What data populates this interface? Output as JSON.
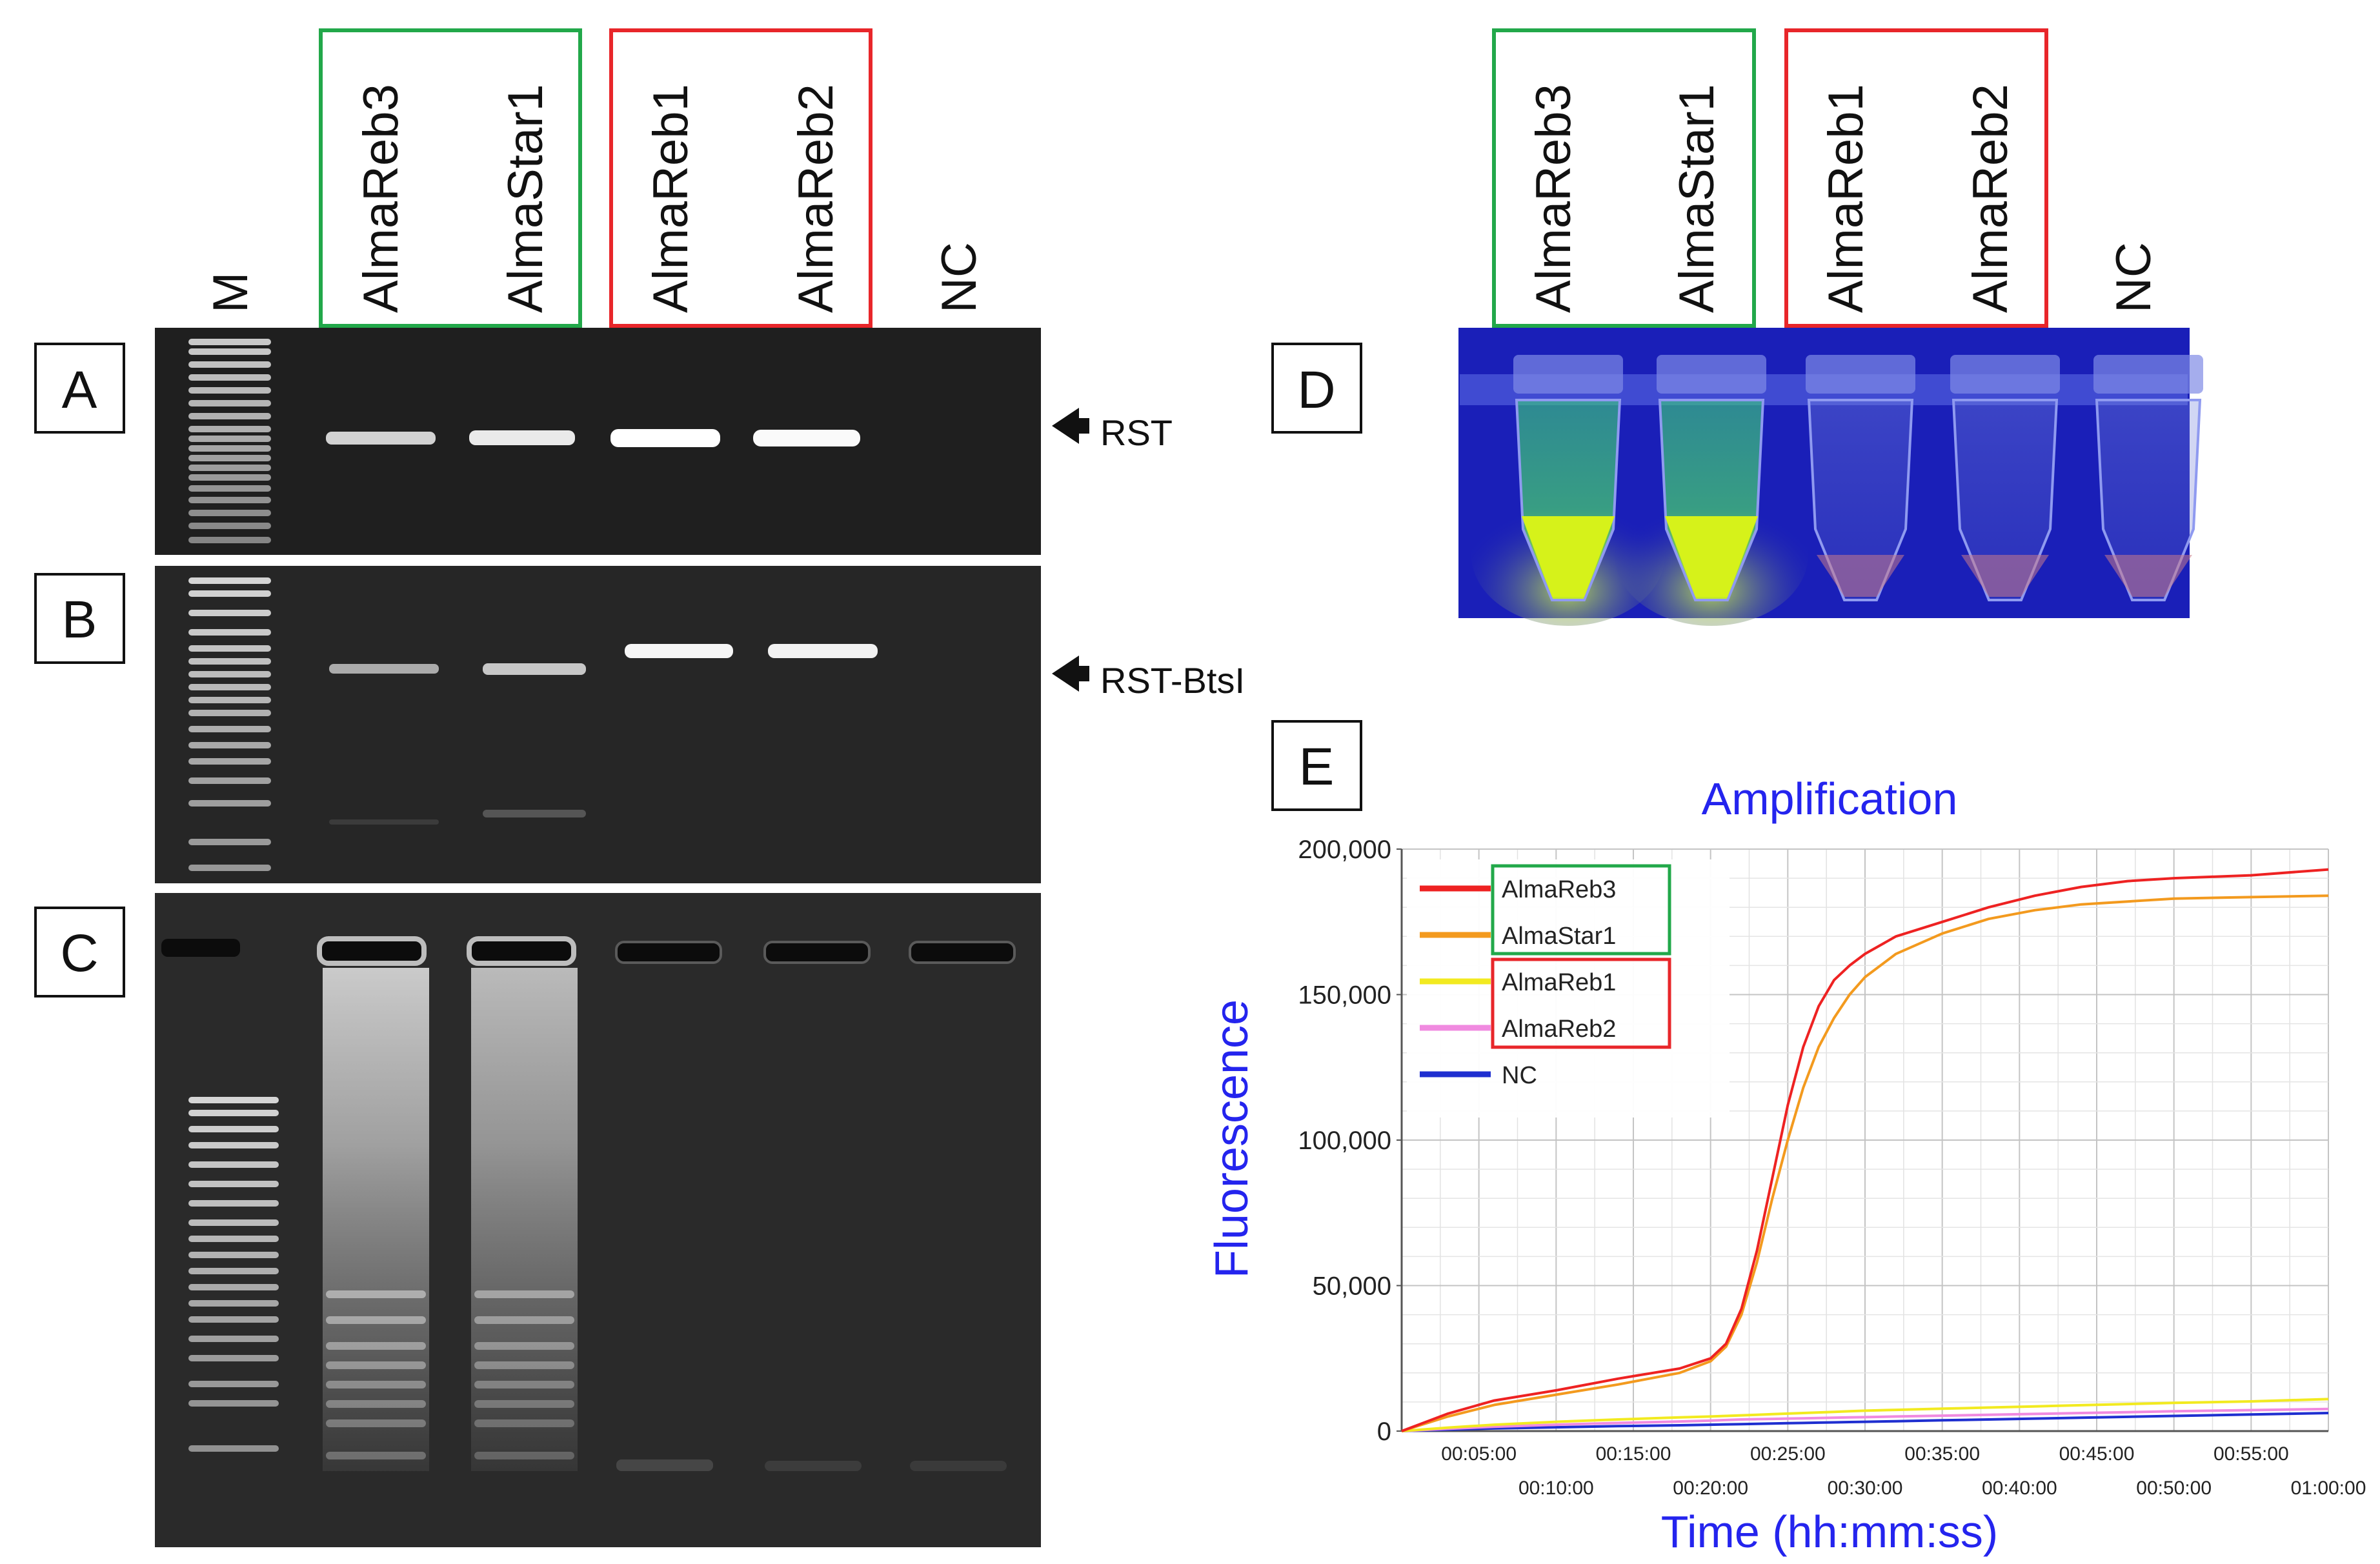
{
  "panel_letters": [
    "A",
    "B",
    "C",
    "D",
    "E"
  ],
  "gel": {
    "marker_label": "M",
    "lanes": [
      "AlmaReb3",
      "AlmaStar1",
      "AlmaReb1",
      "AlmaReb2",
      "NC"
    ],
    "band_a_label": "RST",
    "band_b_label": "RST-BtsI",
    "green_group": [
      "AlmaReb3",
      "AlmaStar1"
    ],
    "red_group": [
      "AlmaReb1",
      "AlmaReb2"
    ]
  },
  "tubes": {
    "lanes": [
      "AlmaReb3",
      "AlmaStar1",
      "AlmaReb1",
      "AlmaReb2",
      "NC"
    ],
    "fluorescent": [
      true,
      true,
      false,
      false,
      false
    ]
  },
  "chart_data": {
    "type": "line",
    "title": "Amplification",
    "xlabel": "Time (hh:mm:ss)",
    "ylabel": "Fluorescence",
    "xlim": [
      0,
      60
    ],
    "ylim": [
      0,
      200000
    ],
    "x_ticks_upper": [
      "00:05:00",
      "00:15:00",
      "00:25:00",
      "00:35:00",
      "00:45:00",
      "00:55:00"
    ],
    "x_ticks_lower": [
      "00:10:00",
      "00:20:00",
      "00:30:00",
      "00:40:00",
      "00:50:00",
      "01:00:00"
    ],
    "y_ticks": [
      "0",
      "50,000",
      "100,000",
      "150,000",
      "200,000"
    ],
    "y_tick_values": [
      0,
      50000,
      100000,
      150000,
      200000
    ],
    "grid": true,
    "legend_position": "top-left",
    "x": [
      0,
      3,
      6,
      10,
      14,
      18,
      20,
      21,
      22,
      23,
      24,
      25,
      26,
      27,
      28,
      29,
      30,
      32,
      35,
      38,
      41,
      44,
      47,
      50,
      55,
      60
    ],
    "series": [
      {
        "name": "AlmaReb3",
        "color": "#ee2222",
        "values": [
          0,
          6000,
          10500,
          14000,
          18000,
          21500,
          25000,
          30000,
          42000,
          62000,
          87000,
          112000,
          132000,
          146000,
          155000,
          160000,
          164000,
          170000,
          175000,
          180000,
          184000,
          187000,
          189000,
          190000,
          191000,
          193000
        ]
      },
      {
        "name": "AlmaStar1",
        "color": "#f39a1e",
        "values": [
          0,
          5000,
          9000,
          12500,
          16000,
          20000,
          24000,
          29000,
          40000,
          58000,
          80000,
          100000,
          118000,
          132000,
          142000,
          150000,
          156000,
          164000,
          171000,
          176000,
          179000,
          181000,
          182000,
          183000,
          183500,
          184000
        ]
      },
      {
        "name": "AlmaReb1",
        "color": "#f2ea20",
        "values": [
          0,
          1200,
          2200,
          3200,
          4000,
          4700,
          5000,
          5200,
          5400,
          5600,
          5800,
          6000,
          6200,
          6400,
          6600,
          6800,
          7000,
          7300,
          7700,
          8100,
          8500,
          8900,
          9300,
          9700,
          10200,
          11000
        ]
      },
      {
        "name": "AlmaReb2",
        "color": "#f08ae0",
        "values": [
          0,
          800,
          1500,
          2200,
          2800,
          3300,
          3600,
          3800,
          4000,
          4100,
          4200,
          4300,
          4400,
          4500,
          4600,
          4700,
          4800,
          5000,
          5300,
          5600,
          5900,
          6200,
          6500,
          6800,
          7200,
          7600
        ]
      },
      {
        "name": "NC",
        "color": "#1f2fd0",
        "values": [
          0,
          500,
          900,
          1300,
          1700,
          2000,
          2200,
          2300,
          2400,
          2500,
          2600,
          2700,
          2800,
          2900,
          3000,
          3100,
          3200,
          3400,
          3700,
          4000,
          4300,
          4600,
          4900,
          5200,
          5700,
          6200
        ]
      }
    ],
    "legend_groups": {
      "green": [
        "AlmaReb3",
        "AlmaStar1"
      ],
      "red": [
        "AlmaReb1",
        "AlmaReb2"
      ]
    }
  },
  "colors": {
    "green_box": "#22a84a",
    "red_box": "#e8262a",
    "title_blue": "#2424ee",
    "gel_bg": "#1e1e1e",
    "tube_bg": "#1a1fb8"
  }
}
